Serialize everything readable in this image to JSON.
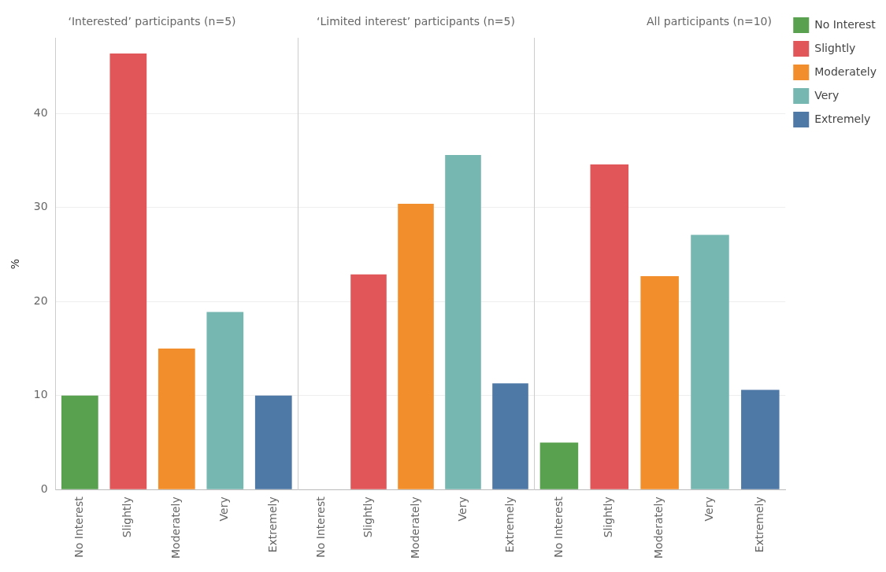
{
  "chart_data": [
    {
      "type": "bar",
      "title": "‘Interested’ participants (n=5)",
      "ylabel": "%",
      "categories": [
        "No Interest",
        "Slightly",
        "Moderately",
        "Very",
        "Extremely"
      ],
      "series": [
        {
          "color": "#59a14f",
          "values": [
            10,
            null,
            null,
            null,
            null
          ]
        },
        {
          "color": "#e15759",
          "values": [
            null,
            46.4,
            null,
            null,
            null
          ]
        },
        {
          "color": "#f28e2b",
          "values": [
            null,
            null,
            15,
            null,
            null
          ]
        },
        {
          "color": "#76b7b2",
          "values": [
            null,
            null,
            null,
            18.9,
            null
          ]
        },
        {
          "color": "#4e79a7",
          "values": [
            null,
            null,
            null,
            null,
            10
          ]
        }
      ],
      "ylim": [
        0,
        48
      ],
      "yticks": [
        0,
        10,
        20,
        30,
        40
      ],
      "grid": "y"
    },
    {
      "type": "bar",
      "title": "‘Limited interest’ participants (n=5)",
      "categories": [
        "No Interest",
        "Slightly",
        "Moderately",
        "Very",
        "Extremely"
      ],
      "series": [
        {
          "color": "#59a14f",
          "values": [
            0,
            null,
            null,
            null,
            null
          ]
        },
        {
          "color": "#e15759",
          "values": [
            null,
            22.9,
            null,
            null,
            null
          ]
        },
        {
          "color": "#f28e2b",
          "values": [
            null,
            null,
            30.4,
            null,
            null
          ]
        },
        {
          "color": "#76b7b2",
          "values": [
            null,
            null,
            null,
            35.6,
            null
          ]
        },
        {
          "color": "#4e79a7",
          "values": [
            null,
            null,
            null,
            null,
            11.3
          ]
        }
      ],
      "ylim": [
        0,
        48
      ],
      "yticks": [
        0,
        10,
        20,
        30,
        40
      ],
      "grid": "y",
      "tick_labels": "x"
    },
    {
      "type": "bar",
      "title": "All participants (n=10)",
      "categories": [
        "No Interest",
        "Slightly",
        "Moderately",
        "Very",
        "Extremely"
      ],
      "series": [
        {
          "name": "No Interest",
          "color": "#59a14f",
          "values": [
            5,
            null,
            null,
            null,
            null
          ]
        },
        {
          "name": "Slightly",
          "color": "#e15759",
          "values": [
            null,
            34.6,
            null,
            null,
            null
          ]
        },
        {
          "name": "Moderately",
          "color": "#f28e2b",
          "values": [
            null,
            null,
            22.7,
            null,
            null
          ]
        },
        {
          "name": "Very",
          "color": "#76b7b2",
          "values": [
            null,
            null,
            null,
            27.1,
            null
          ]
        },
        {
          "name": "Extremely",
          "color": "#4e79a7",
          "values": [
            null,
            null,
            null,
            null,
            10.6
          ]
        }
      ],
      "ylim": [
        0,
        48
      ],
      "yticks": [
        0,
        10,
        20,
        30,
        40
      ],
      "grid": "y",
      "tick_labels": "x",
      "legend": "right"
    }
  ]
}
